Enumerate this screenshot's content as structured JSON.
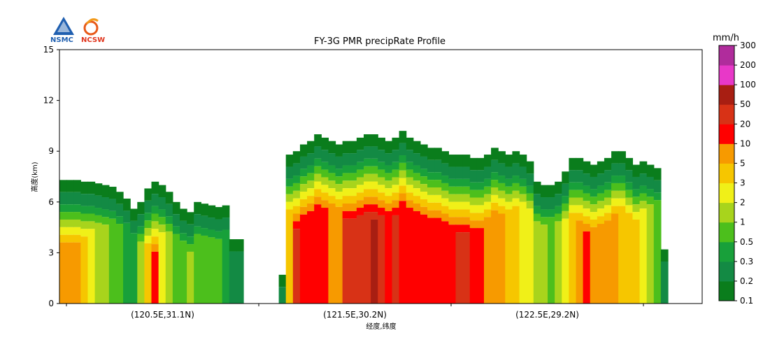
{
  "logos": {
    "left": "NSMC",
    "right": "NCSW"
  },
  "chart_data": {
    "type": "heatmap",
    "title": "FY-3G PMR precipRate Profile",
    "xlabel": "经度,纬度",
    "ylabel": "高度(km)",
    "ylim": [
      0,
      15
    ],
    "yticks": [
      0,
      3,
      6,
      9,
      12,
      15
    ],
    "xtick_labels": [
      "(120.5E,31.1N)",
      "(121.5E,30.2N)",
      "(122.5E,29.2N)"
    ],
    "colorbar": {
      "unit": "mm/h",
      "levels": [
        "0.1",
        "0.2",
        "0.3",
        "0.5",
        "1",
        "2",
        "3",
        "5",
        "10",
        "20",
        "50",
        "100",
        "200",
        "300"
      ],
      "colors": [
        "#0a7d1c",
        "#138a44",
        "#18a03a",
        "#4cbf1c",
        "#a8d41c",
        "#f0f018",
        "#f6c600",
        "#f79a00",
        "#ff0000",
        "#d83216",
        "#a81e12",
        "#e838c8",
        "#b02c9c"
      ]
    },
    "columns_note": "",
    "cloud_top_km": [
      7.3,
      7.3,
      7.3,
      7.2,
      7.2,
      7.1,
      7.0,
      6.9,
      6.6,
      6.2,
      5.6,
      6.0,
      6.8,
      7.2,
      7.0,
      6.6,
      6.0,
      5.6,
      5.4,
      6.0,
      5.9,
      5.8,
      5.7,
      5.8,
      3.8,
      3.8,
      0,
      0,
      0,
      0,
      0,
      1.7,
      8.8,
      9.0,
      9.4,
      9.6,
      10.0,
      9.8,
      9.6,
      9.4,
      9.6,
      9.6,
      9.8,
      10.0,
      10.0,
      9.8,
      9.6,
      9.8,
      10.2,
      9.8,
      9.6,
      9.4,
      9.2,
      9.2,
      9.0,
      8.8,
      8.8,
      8.8,
      8.6,
      8.6,
      8.8,
      9.2,
      9.0,
      8.8,
      9.0,
      8.8,
      8.4,
      7.2,
      7.0,
      7.0,
      7.2,
      7.8,
      8.6,
      8.6,
      8.4,
      8.2,
      8.4,
      8.6,
      9.0,
      9.0,
      8.6,
      8.2,
      8.4,
      8.2,
      8.0,
      3.2
    ],
    "peak_rate_mmh": [
      5,
      5,
      5,
      3,
      2,
      1,
      1,
      0.5,
      0.5,
      0.3,
      0.3,
      1,
      3,
      10,
      2,
      1,
      0.5,
      0.5,
      1,
      0.5,
      0.5,
      0.5,
      0.5,
      0.3,
      0.2,
      0.2,
      0,
      0,
      0,
      0,
      0,
      0.2,
      3,
      20,
      10,
      10,
      10,
      10,
      5,
      5,
      20,
      20,
      20,
      20,
      50,
      20,
      10,
      20,
      10,
      10,
      10,
      10,
      10,
      10,
      10,
      10,
      20,
      20,
      10,
      10,
      5,
      5,
      5,
      3,
      3,
      2,
      2,
      1,
      1,
      0.5,
      1,
      2,
      3,
      5,
      10,
      5,
      5,
      5,
      5,
      3,
      3,
      3,
      2,
      1,
      0.5,
      0.2
    ]
  }
}
